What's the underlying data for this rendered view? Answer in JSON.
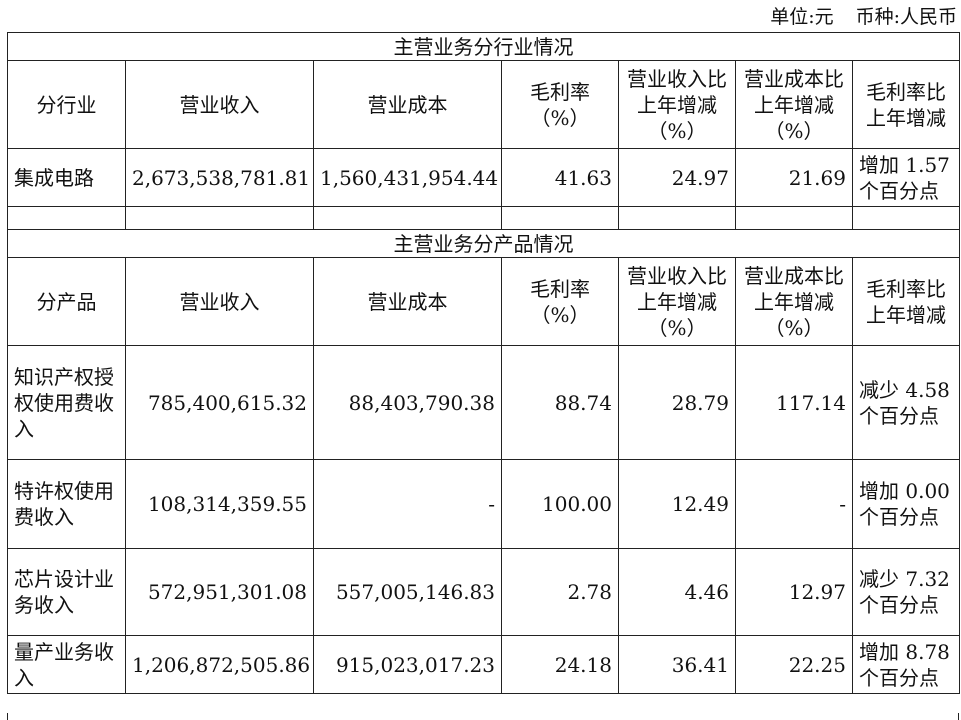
{
  "unit_label": "单位:元",
  "currency_label": "币种:人民币",
  "section_industry": "主营业务分行业情况",
  "section_product": "主营业务分产品情况",
  "headers_industry": [
    "分行业",
    "营业收入",
    "营业成本",
    "毛利率（%）",
    "营业收入比上年增减（%）",
    "营业成本比上年增减（%）",
    "毛利率比上年增减"
  ],
  "headers_product": [
    "分产品",
    "营业收入",
    "营业成本",
    "毛利率（%）",
    "营业收入比上年增减（%）",
    "营业成本比上年增减（%）",
    "毛利率比上年增减"
  ],
  "industry_rows": [
    {
      "name": "集成电路",
      "revenue": "2,673,538,781.81",
      "cost": "1,560,431,954.44",
      "margin": "41.63",
      "revenue_change": "24.97",
      "cost_change": "21.69",
      "margin_change": "增加 1.57 个百分点"
    }
  ],
  "product_rows": [
    {
      "name": "知识产权授权使用费收入",
      "revenue": "785,400,615.32",
      "cost": "88,403,790.38",
      "margin": "88.74",
      "revenue_change": "28.79",
      "cost_change": "117.14",
      "margin_change": "减少 4.58 个百分点"
    },
    {
      "name": "特许权使用费收入",
      "revenue": "108,314,359.55",
      "cost": "-",
      "margin": "100.00",
      "revenue_change": "12.49",
      "cost_change": "-",
      "margin_change": "增加 0.00 个百分点"
    },
    {
      "name": "芯片设计业务收入",
      "revenue": "572,951,301.08",
      "cost": "557,005,146.83",
      "margin": "2.78",
      "revenue_change": "4.46",
      "cost_change": "12.97",
      "margin_change": "减少 7.32 个百分点"
    },
    {
      "name": "量产业务收入",
      "revenue": "1,206,872,505.86",
      "cost": "915,023,017.23",
      "margin": "24.18",
      "revenue_change": "36.41",
      "cost_change": "22.25",
      "margin_change": "增加 8.78 个百分点"
    }
  ]
}
